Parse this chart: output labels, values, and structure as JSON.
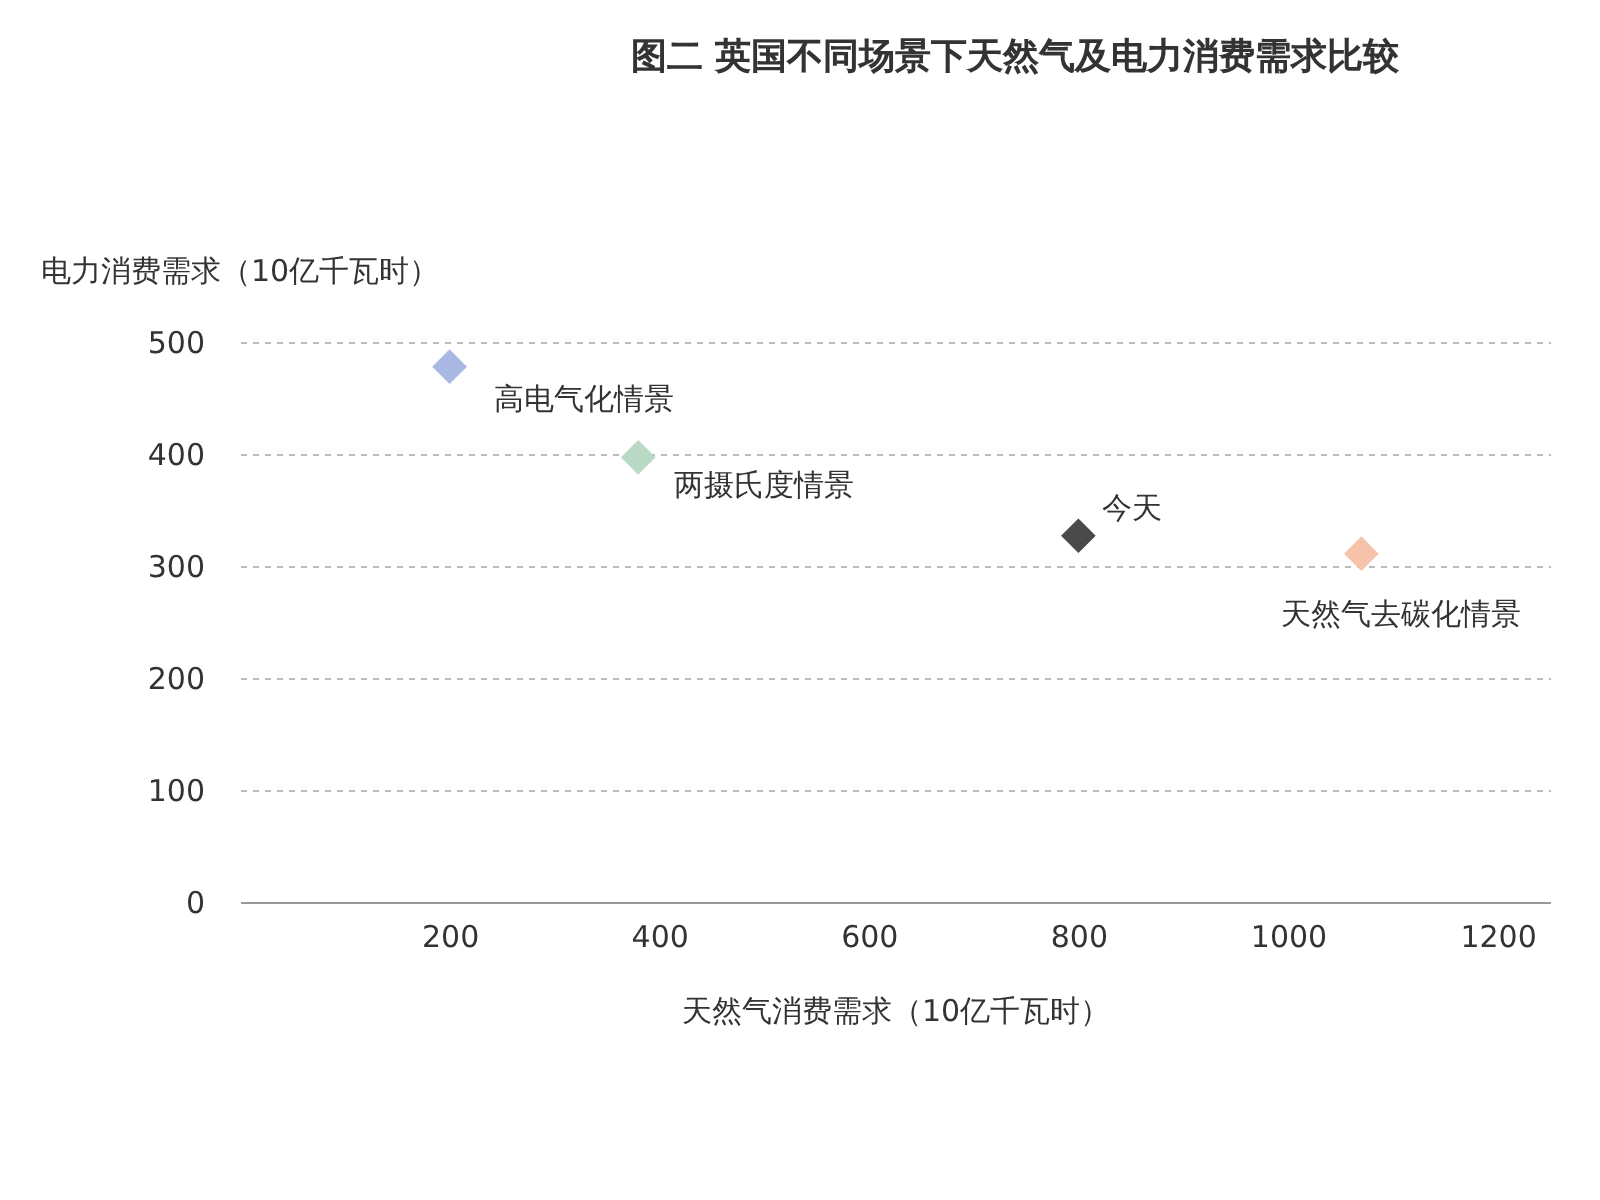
{
  "chart_data": {
    "type": "scatter",
    "title": "图二 英国不同场景下天然气及电力消费需求比较",
    "xlabel": "天然气消费需求（10亿千瓦时）",
    "ylabel": "电力消费需求（10亿千瓦时）",
    "series": [
      {
        "name": "高电气化情景",
        "color": "#a9b8e2",
        "x": [
          200
        ],
        "values": [
          478
        ]
      },
      {
        "name": "两摄氏度情景",
        "color": "#b9d9c5",
        "x": [
          380
        ],
        "values": [
          397
        ]
      },
      {
        "name": "今天",
        "color": "#4a4a4a",
        "x": [
          800
        ],
        "values": [
          327
        ]
      },
      {
        "name": "天然气去碳化情景",
        "color": "#f7c2aa",
        "x": [
          1070
        ],
        "values": [
          311
        ]
      }
    ],
    "xlim": [
      0,
      1250
    ],
    "xticks": [
      200,
      400,
      600,
      800,
      1000,
      1200
    ],
    "ylim": [
      0,
      500
    ],
    "yticks": [
      0,
      100,
      200,
      300,
      400,
      500
    ],
    "grid": "y",
    "legend": false,
    "marker": "diamond"
  }
}
